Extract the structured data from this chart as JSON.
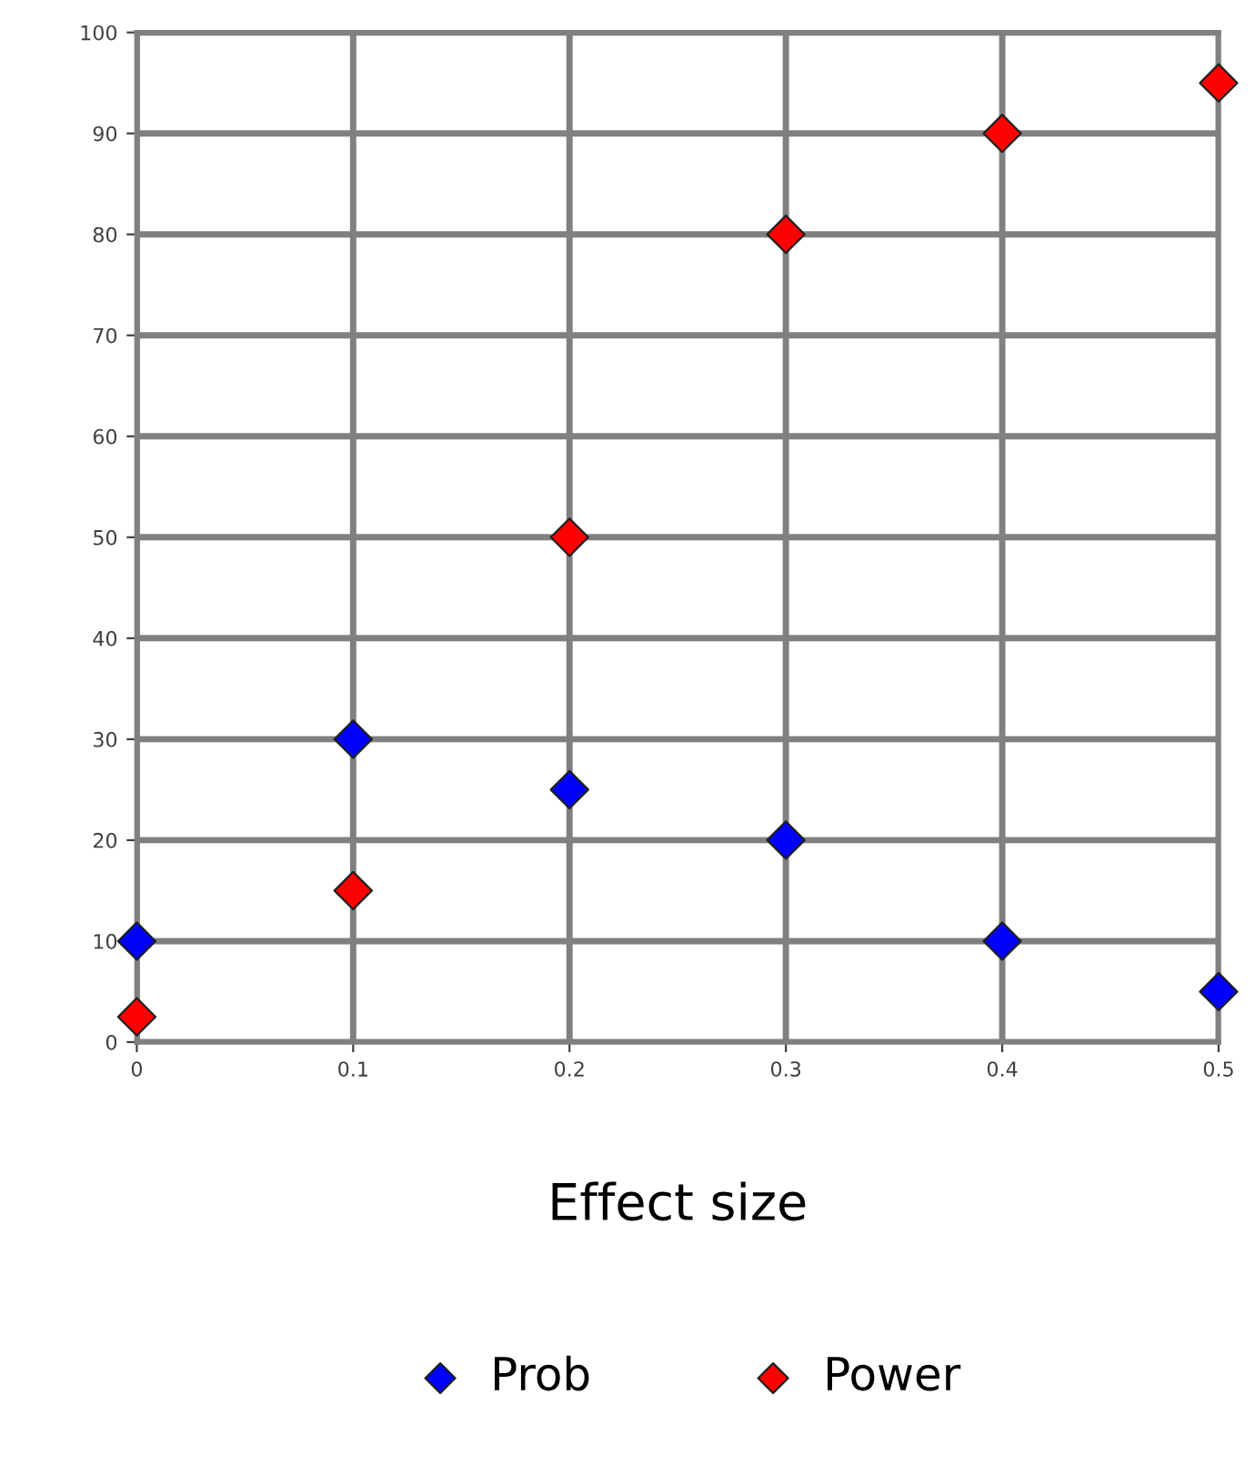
{
  "chart_data": {
    "type": "scatter",
    "xlabel": "Effect size",
    "x": [
      0,
      0.1,
      0.2,
      0.3,
      0.4,
      0.5
    ],
    "series": [
      {
        "name": "Prob",
        "color": "#0000ff",
        "values": [
          10,
          30,
          25,
          20,
          10,
          5
        ]
      },
      {
        "name": "Power",
        "color": "#ff0000",
        "values": [
          2.5,
          15,
          50,
          80,
          90,
          95
        ]
      }
    ],
    "xlim": [
      0,
      0.5
    ],
    "xticks": [
      0,
      0.1,
      0.2,
      0.3,
      0.4,
      0.5
    ],
    "ylim": [
      0,
      100
    ],
    "yticks": [
      0,
      10,
      20,
      30,
      40,
      50,
      60,
      70,
      80,
      90,
      100
    ],
    "grid": true,
    "legend": "bottom",
    "marker": "diamond"
  }
}
